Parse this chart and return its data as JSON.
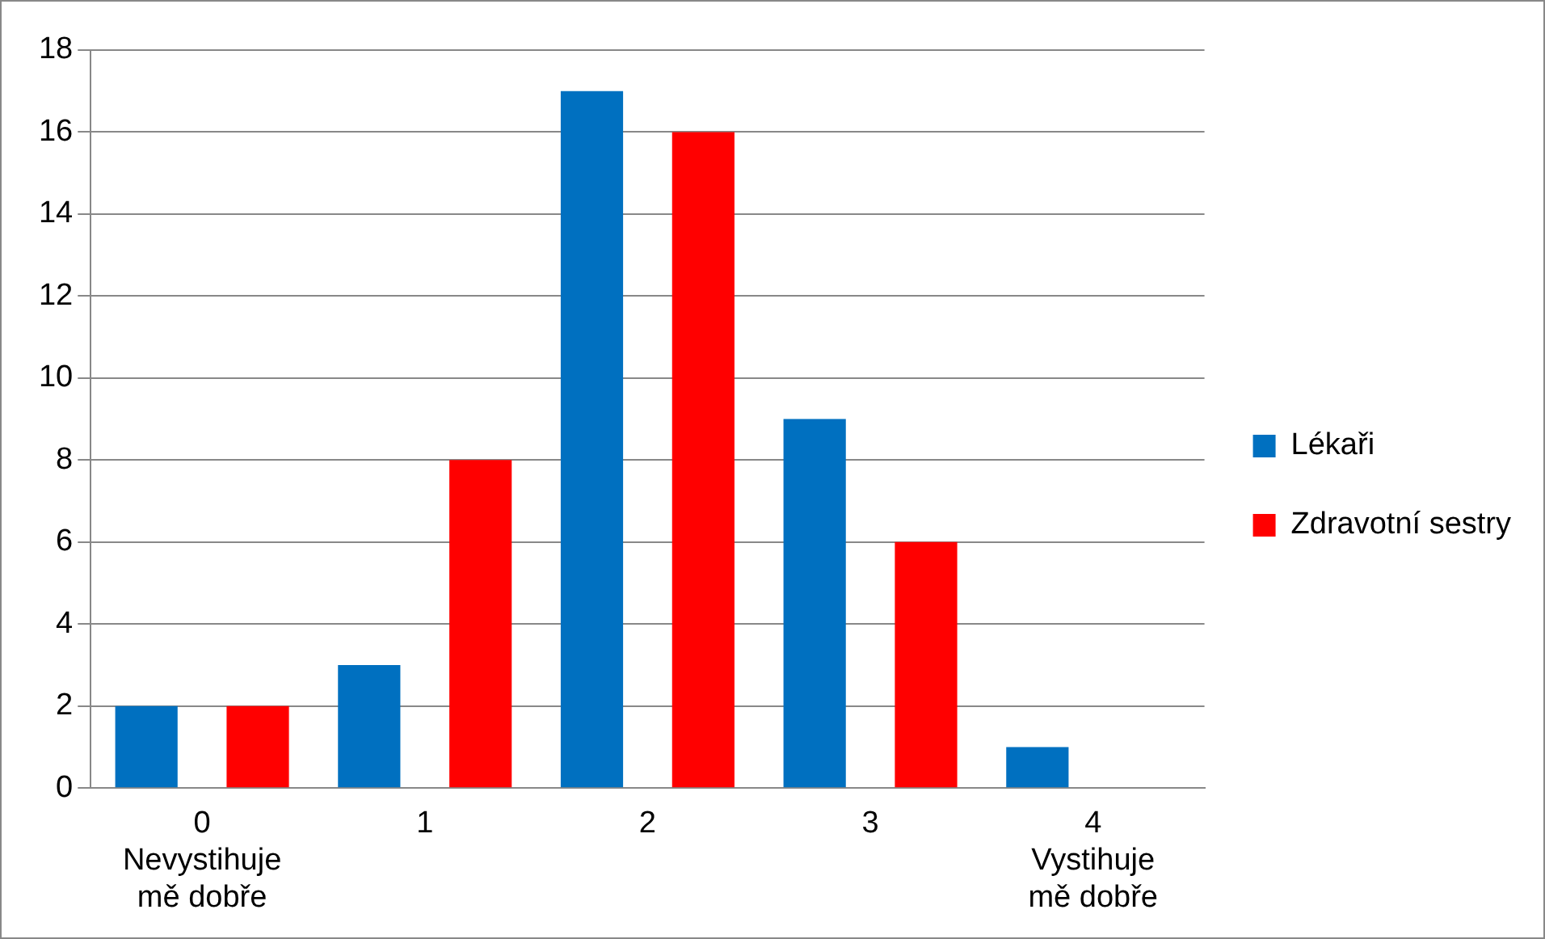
{
  "chart_data": {
    "type": "bar",
    "categories": [
      "0\nNevystihuje\nmě dobře",
      "1",
      "2",
      "3",
      "4\nVystihuje\nmě dobře"
    ],
    "series": [
      {
        "name": "Lékaři",
        "color": "#0070c0",
        "values": [
          2,
          3,
          17,
          9,
          1
        ]
      },
      {
        "name": "Zdravotní sestry",
        "color": "#ff0000",
        "values": [
          2,
          8,
          16,
          6,
          0
        ]
      }
    ],
    "ylim": [
      0,
      18
    ],
    "yticks": [
      0,
      2,
      4,
      6,
      8,
      10,
      12,
      14,
      16,
      18
    ],
    "grid": "y",
    "legend": "right"
  }
}
